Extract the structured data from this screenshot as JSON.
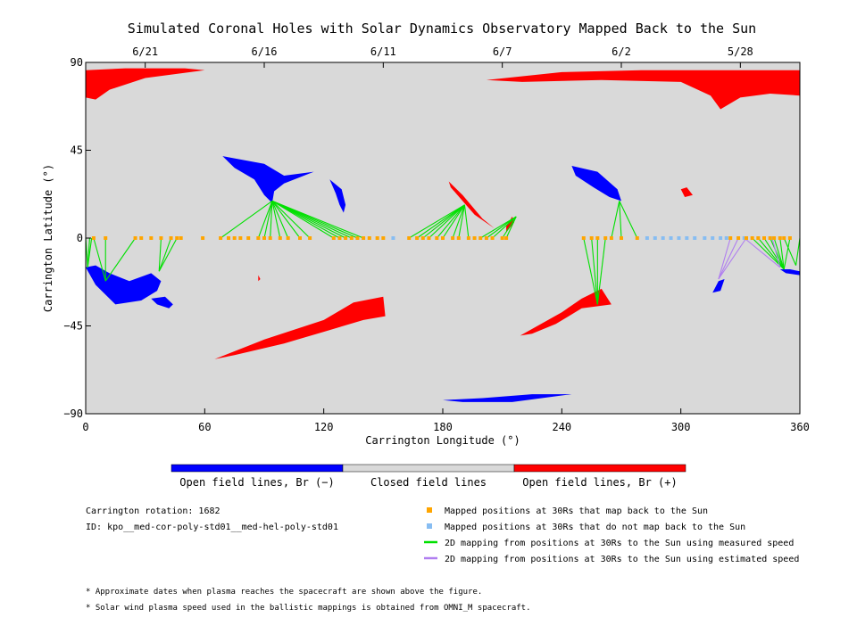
{
  "chart_data": {
    "type": "scatter",
    "title": "Simulated Coronal Holes with Solar Dynamics Observatory Mapped Back to the Sun",
    "xlabel": "Carrington Longitude (°)",
    "ylabel": "Carrington Latitude (°)",
    "xlim": [
      0,
      360
    ],
    "ylim": [
      -90,
      90
    ],
    "x_ticks": [
      0,
      60,
      120,
      180,
      240,
      300,
      360
    ],
    "y_ticks": [
      {
        "value": 90,
        "label": "90"
      },
      {
        "value": 45,
        "label": "45"
      },
      {
        "value": 0,
        "label": "0"
      },
      {
        "value": -45,
        "label": "−45"
      },
      {
        "value": -90,
        "label": "−90"
      }
    ],
    "date_ticks": [
      {
        "label": "6/21",
        "lon": 30
      },
      {
        "label": "6/16",
        "lon": 90
      },
      {
        "label": "6/11",
        "lon": 150
      },
      {
        "label": "6/7",
        "lon": 210
      },
      {
        "label": "6/2",
        "lon": 270
      },
      {
        "label": "5/28",
        "lon": 330
      }
    ],
    "colors": {
      "background": "#d9d9d9",
      "open_negative": "#0000ff",
      "open_positive": "#ff0000",
      "mapped": "#ffa500",
      "unmapped": "#87bdf2",
      "measured_line": "#00e000",
      "estimated_line": "#b07ef0"
    },
    "regions": [
      {
        "polarity": "positive",
        "points": [
          [
            0,
            86
          ],
          [
            20,
            87
          ],
          [
            50,
            87
          ],
          [
            60,
            86
          ],
          [
            30,
            82
          ],
          [
            12,
            76
          ],
          [
            5,
            71
          ],
          [
            0,
            72
          ]
        ]
      },
      {
        "polarity": "positive",
        "points": [
          [
            202,
            81
          ],
          [
            240,
            85
          ],
          [
            280,
            86
          ],
          [
            320,
            86
          ],
          [
            360,
            86
          ],
          [
            360,
            73
          ],
          [
            345,
            74
          ],
          [
            330,
            72
          ],
          [
            320,
            66
          ],
          [
            315,
            73
          ],
          [
            300,
            80
          ],
          [
            260,
            81
          ],
          [
            220,
            80
          ]
        ]
      },
      {
        "polarity": "negative",
        "points": [
          [
            69,
            42
          ],
          [
            90,
            38
          ],
          [
            100,
            32
          ],
          [
            115,
            34
          ],
          [
            100,
            28
          ],
          [
            95,
            24
          ],
          [
            94,
            18
          ],
          [
            90,
            22
          ],
          [
            85,
            30
          ],
          [
            75,
            36
          ]
        ]
      },
      {
        "polarity": "negative",
        "points": [
          [
            123,
            30
          ],
          [
            129,
            25
          ],
          [
            131,
            17
          ],
          [
            130,
            13
          ],
          [
            128,
            17
          ],
          [
            126,
            23
          ]
        ]
      },
      {
        "polarity": "positive",
        "points": [
          [
            183,
            29
          ],
          [
            190,
            22
          ],
          [
            200,
            10
          ],
          [
            206,
            5
          ],
          [
            196,
            12
          ],
          [
            190,
            19
          ],
          [
            184,
            26
          ]
        ]
      },
      {
        "polarity": "positive",
        "points": [
          [
            212,
            6
          ],
          [
            215,
            11
          ],
          [
            216,
            8
          ],
          [
            212,
            3
          ]
        ]
      },
      {
        "polarity": "negative",
        "points": [
          [
            245,
            37
          ],
          [
            258,
            34
          ],
          [
            268,
            25
          ],
          [
            270,
            19
          ],
          [
            264,
            21
          ],
          [
            256,
            26
          ],
          [
            247,
            32
          ]
        ]
      },
      {
        "polarity": "positive",
        "points": [
          [
            300,
            25
          ],
          [
            303,
            26
          ],
          [
            306,
            22
          ],
          [
            302,
            21
          ]
        ]
      },
      {
        "polarity": "negative",
        "points": [
          [
            0,
            -15
          ],
          [
            5,
            -24
          ],
          [
            15,
            -34
          ],
          [
            28,
            -32
          ],
          [
            36,
            -27
          ],
          [
            38,
            -22
          ],
          [
            33,
            -18
          ],
          [
            22,
            -22
          ],
          [
            12,
            -18
          ],
          [
            5,
            -14
          ]
        ]
      },
      {
        "polarity": "negative",
        "points": [
          [
            33,
            -31
          ],
          [
            40,
            -30
          ],
          [
            44,
            -34
          ],
          [
            42,
            -36
          ],
          [
            36,
            -34
          ]
        ]
      },
      {
        "polarity": "positive",
        "points": [
          [
            87,
            -19
          ],
          [
            88,
            -21
          ],
          [
            87,
            -22
          ]
        ]
      },
      {
        "polarity": "positive",
        "points": [
          [
            65,
            -62
          ],
          [
            90,
            -52
          ],
          [
            120,
            -42
          ],
          [
            135,
            -33
          ],
          [
            150,
            -30
          ],
          [
            151,
            -40
          ],
          [
            140,
            -42
          ],
          [
            120,
            -48
          ],
          [
            100,
            -54
          ],
          [
            75,
            -60
          ]
        ]
      },
      {
        "polarity": "positive",
        "points": [
          [
            219,
            -50
          ],
          [
            240,
            -38
          ],
          [
            250,
            -31
          ],
          [
            260,
            -26
          ],
          [
            265,
            -34
          ],
          [
            250,
            -36
          ],
          [
            237,
            -44
          ],
          [
            225,
            -49
          ]
        ]
      },
      {
        "polarity": "negative",
        "points": [
          [
            180,
            -83
          ],
          [
            200,
            -82
          ],
          [
            225,
            -80
          ],
          [
            245,
            -80
          ],
          [
            215,
            -84
          ],
          [
            190,
            -84
          ]
        ]
      },
      {
        "polarity": "negative",
        "points": [
          [
            316,
            -28
          ],
          [
            319,
            -22
          ],
          [
            322,
            -21
          ],
          [
            320,
            -27
          ]
        ]
      },
      {
        "polarity": "negative",
        "points": [
          [
            350,
            -16
          ],
          [
            355,
            -16
          ],
          [
            360,
            -17
          ],
          [
            360,
            -19
          ],
          [
            353,
            -18
          ]
        ]
      }
    ],
    "mapped_positions": [
      [
        4,
        0
      ],
      [
        10,
        0
      ],
      [
        25,
        0
      ],
      [
        28,
        0
      ],
      [
        33,
        0
      ],
      [
        38,
        0
      ],
      [
        43,
        0
      ],
      [
        46,
        0
      ],
      [
        48,
        0
      ],
      [
        59,
        0
      ],
      [
        68,
        0
      ],
      [
        72,
        0
      ],
      [
        75,
        0
      ],
      [
        78,
        0
      ],
      [
        82,
        0
      ],
      [
        87,
        0
      ],
      [
        90,
        0
      ],
      [
        93,
        0
      ],
      [
        98,
        0
      ],
      [
        102,
        0
      ],
      [
        108,
        0
      ],
      [
        113,
        0
      ],
      [
        125,
        0
      ],
      [
        128,
        0
      ],
      [
        131,
        0
      ],
      [
        134,
        0
      ],
      [
        137,
        0
      ],
      [
        140,
        0
      ],
      [
        143,
        0
      ],
      [
        147,
        0
      ],
      [
        150,
        0
      ],
      [
        163,
        0
      ],
      [
        167,
        0
      ],
      [
        170,
        0
      ],
      [
        173,
        0
      ],
      [
        177,
        0
      ],
      [
        180,
        0
      ],
      [
        185,
        0
      ],
      [
        188,
        0
      ],
      [
        193,
        0
      ],
      [
        196,
        0
      ],
      [
        199,
        0
      ],
      [
        202,
        0
      ],
      [
        205,
        0
      ],
      [
        210,
        0
      ],
      [
        212,
        0
      ],
      [
        251,
        0
      ],
      [
        255,
        0
      ],
      [
        258,
        0
      ],
      [
        262,
        0
      ],
      [
        265,
        0
      ],
      [
        270,
        0
      ],
      [
        278,
        0
      ],
      [
        325,
        0
      ],
      [
        329,
        0
      ],
      [
        333,
        0
      ],
      [
        336,
        0
      ],
      [
        339,
        0
      ],
      [
        342,
        0
      ],
      [
        345,
        0
      ],
      [
        347,
        0
      ],
      [
        350,
        0
      ],
      [
        352,
        0
      ],
      [
        355,
        0
      ]
    ],
    "unmapped_positions": [
      [
        155,
        0
      ],
      [
        283,
        0
      ],
      [
        287,
        0
      ],
      [
        291,
        0
      ],
      [
        295,
        0
      ],
      [
        299,
        0
      ],
      [
        303,
        0
      ],
      [
        307,
        0
      ],
      [
        312,
        0
      ],
      [
        316,
        0
      ],
      [
        320,
        0
      ],
      [
        323,
        0
      ],
      [
        332,
        0
      ],
      [
        346,
        0
      ]
    ],
    "measured_lines": [
      {
        "target": [
          94,
          19
        ],
        "from": [
          68,
          87,
          90,
          93,
          98,
          102,
          108,
          113,
          125,
          128,
          131,
          134,
          137,
          140
        ]
      },
      {
        "target": [
          191,
          17
        ],
        "from": [
          163,
          167,
          170,
          173,
          177,
          180,
          185,
          188,
          193
        ]
      },
      {
        "target": [
          217,
          11
        ],
        "from": [
          199,
          202,
          205,
          210,
          212
        ]
      },
      {
        "target": [
          269,
          19
        ],
        "from": [
          265,
          270,
          278
        ]
      },
      {
        "target": [
          258,
          -34
        ],
        "from": [
          251,
          255,
          258,
          262
        ]
      },
      {
        "target": [
          1,
          -15
        ],
        "from": [
          0,
          2,
          3
        ]
      },
      {
        "target": [
          10,
          -22
        ],
        "from": [
          4,
          10,
          25
        ]
      },
      {
        "target": [
          37,
          -17
        ],
        "from": [
          38,
          43,
          46
        ]
      },
      {
        "target": [
          352,
          -16
        ],
        "from": [
          336,
          339,
          342,
          345,
          347,
          350,
          355
        ]
      },
      {
        "target": [
          358,
          -14
        ],
        "from": [
          352,
          360
        ]
      }
    ],
    "estimated_lines": [
      {
        "target": [
          319,
          -21
        ],
        "from": [
          325,
          329,
          333
        ]
      },
      {
        "target": [
          350,
          -15
        ],
        "from": [
          332,
          346
        ]
      }
    ]
  },
  "colorbar": {
    "negative_label": "Open field lines, Br (−)",
    "closed_label": "Closed field lines",
    "positive_label": "Open field lines, Br (+)",
    "negative_color": "#0000ff",
    "closed_color": "#d9d9d9",
    "positive_color": "#ff0000"
  },
  "info": {
    "rotation": "Carrington rotation: 1682",
    "id": "ID: kpo__med-cor-poly-std01__med-hel-poly-std01"
  },
  "legend": {
    "mapped": "Mapped positions at 30Rs that map back to the Sun",
    "unmapped": "Mapped positions at 30Rs that do not map back to the Sun",
    "measured": "2D mapping from positions at 30Rs to the Sun using measured speed",
    "estimated": "2D mapping from positions at 30Rs to the Sun using estimated speed"
  },
  "footnotes": {
    "dates": "* Approximate dates when plasma reaches the spacecraft are shown above the figure.",
    "speed": "* Solar wind plasma speed used in the ballistic mappings is obtained from OMNI_M spacecraft."
  }
}
